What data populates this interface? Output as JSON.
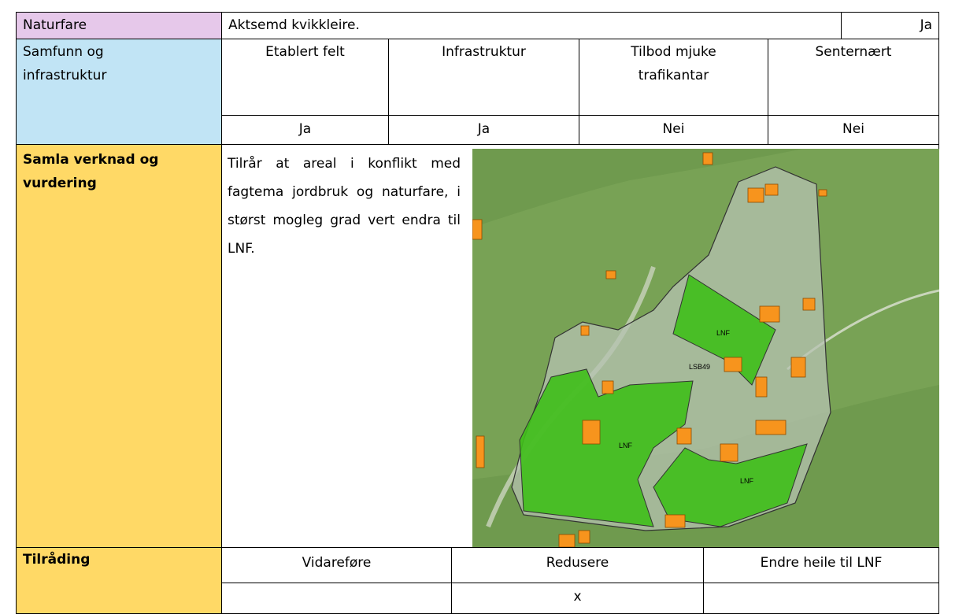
{
  "rows": {
    "naturfare": {
      "label": "Naturfare",
      "text": "Aktsemd kvikkleire.",
      "answer": "Ja"
    },
    "samfunn": {
      "label": "Samfunn og infrastruktur",
      "headers": [
        "Etablert felt",
        "Infrastruktur",
        "Tilbod mjuke trafikantar",
        "Senternært"
      ],
      "values": [
        "Ja",
        "Ja",
        "Nei",
        "Nei"
      ]
    },
    "samla": {
      "label": "Samla verknad og vurdering",
      "text": "Tilrår at areal i konflikt med fagtema jordbruk og naturfare, i størst mogleg grad vert endra til LNF.",
      "map_labels": [
        "LNF",
        "LSB49",
        "LNF",
        "LNF"
      ]
    },
    "tilrading": {
      "label": "Tilråding",
      "options": [
        "Vidareføre",
        "Redusere",
        "Endre heile til LNF"
      ],
      "mark": "x"
    }
  }
}
